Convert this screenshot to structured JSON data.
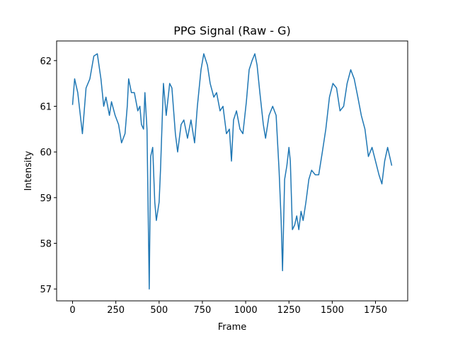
{
  "chart_data": {
    "type": "line",
    "title": "PPG Signal (Raw - G)",
    "x_label": "Frame",
    "y_label": "Intensity",
    "xlim": [
      -92,
      1936
    ],
    "ylim": [
      56.74,
      62.43
    ],
    "xticks": [
      0,
      250,
      500,
      750,
      1000,
      1250,
      1500,
      1750
    ],
    "yticks": [
      57,
      58,
      59,
      60,
      61,
      62
    ],
    "series": [
      {
        "color": "#1f77b4",
        "x": [
          0,
          12,
          30,
          57,
          78,
          100,
          123,
          143,
          164,
          180,
          193,
          213,
          225,
          246,
          266,
          283,
          303,
          316,
          324,
          340,
          357,
          377,
          389,
          398,
          410,
          418,
          430,
          443,
          451,
          463,
          475,
          484,
          500,
          508,
          525,
          541,
          561,
          574,
          594,
          607,
          627,
          643,
          664,
          684,
          705,
          721,
          742,
          758,
          779,
          795,
          816,
          832,
          852,
          869,
          889,
          906,
          918,
          930,
          947,
          967,
          984,
          1004,
          1020,
          1037,
          1053,
          1066,
          1082,
          1102,
          1115,
          1135,
          1156,
          1176,
          1193,
          1205,
          1213,
          1225,
          1238,
          1250,
          1258,
          1270,
          1283,
          1295,
          1307,
          1320,
          1332,
          1348,
          1365,
          1381,
          1402,
          1422,
          1443,
          1463,
          1484,
          1504,
          1525,
          1545,
          1566,
          1586,
          1607,
          1627,
          1648,
          1668,
          1689,
          1709,
          1730,
          1750,
          1770,
          1787,
          1803,
          1820,
          1832,
          1844
        ],
        "values": [
          61.03,
          61.6,
          61.3,
          60.4,
          61.4,
          61.6,
          62.1,
          62.15,
          61.6,
          61.0,
          61.2,
          60.8,
          61.1,
          60.8,
          60.6,
          60.2,
          60.4,
          61.0,
          61.6,
          61.3,
          61.3,
          60.9,
          61.0,
          60.6,
          60.5,
          61.3,
          60.5,
          57.0,
          59.9,
          60.1,
          58.9,
          58.5,
          58.9,
          59.6,
          61.5,
          60.8,
          61.5,
          61.4,
          60.4,
          60.0,
          60.6,
          60.7,
          60.3,
          60.7,
          60.2,
          61.0,
          61.8,
          62.15,
          61.9,
          61.5,
          61.2,
          61.3,
          60.9,
          61.0,
          60.4,
          60.5,
          59.8,
          60.7,
          60.9,
          60.5,
          60.4,
          61.1,
          61.8,
          62.0,
          62.15,
          61.9,
          61.3,
          60.6,
          60.3,
          60.8,
          61.0,
          60.8,
          59.6,
          58.5,
          57.4,
          59.4,
          59.7,
          60.1,
          59.8,
          58.3,
          58.4,
          58.6,
          58.3,
          58.7,
          58.5,
          58.9,
          59.4,
          59.6,
          59.5,
          59.5,
          60.0,
          60.5,
          61.2,
          61.5,
          61.4,
          60.9,
          61.0,
          61.5,
          61.8,
          61.6,
          61.2,
          60.8,
          60.5,
          59.9,
          60.1,
          59.8,
          59.5,
          59.3,
          59.8,
          60.1,
          59.9,
          59.7
        ]
      }
    ]
  }
}
